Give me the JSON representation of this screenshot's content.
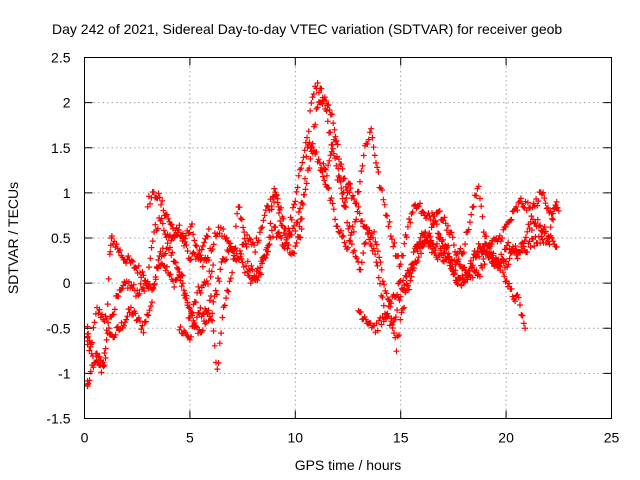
{
  "chart_data": {
    "type": "scatter",
    "title": "Day 242 of 2021, Sidereal Day-to-day VTEC variation (SDTVAR) for receiver geob",
    "xlabel": "GPS time / hours",
    "ylabel": "SDTVAR / TECUs",
    "xlim": [
      0,
      25
    ],
    "ylim": [
      -1.5,
      2.5
    ],
    "x_ticks": [
      "0",
      "5",
      "10",
      "15",
      "20",
      "25"
    ],
    "y_ticks": [
      "-1.5",
      "-1",
      "-0.5",
      "0",
      "0.5",
      "1",
      "1.5",
      "2",
      "2.5"
    ],
    "grid": true,
    "marker": "+",
    "series": [
      {
        "name": "SDTVAR",
        "color": "#ff0000",
        "tracks": [
          [
            [
              0.0,
              -0.5
            ],
            [
              0.3,
              -0.7
            ],
            [
              0.6,
              -0.3
            ],
            [
              1.0,
              -0.4
            ],
            [
              1.3,
              -0.6
            ],
            [
              1.7,
              -0.5
            ],
            [
              2.2,
              -0.3
            ],
            [
              2.8,
              -0.5
            ],
            [
              3.2,
              -0.2
            ],
            [
              3.5,
              0.3
            ],
            [
              3.8,
              0.2
            ],
            [
              4.2,
              0.0
            ],
            [
              4.6,
              0.1
            ],
            [
              5.0,
              -0.4
            ],
            [
              5.4,
              -0.1
            ],
            [
              5.8,
              0.0
            ],
            [
              6.1,
              0.2
            ]
          ],
          [
            [
              0.0,
              -0.6
            ],
            [
              0.4,
              -0.8
            ],
            [
              0.8,
              -1.0
            ],
            [
              1.0,
              -0.8
            ],
            [
              1.2,
              0.3
            ],
            [
              1.3,
              0.5
            ],
            [
              1.8,
              0.3
            ],
            [
              2.3,
              0.2
            ],
            [
              2.8,
              0.1
            ],
            [
              3.2,
              -0.1
            ],
            [
              3.6,
              0.3
            ],
            [
              4.0,
              0.4
            ],
            [
              4.5,
              0.1
            ],
            [
              5.0,
              -0.3
            ],
            [
              5.5,
              -0.6
            ],
            [
              6.0,
              -0.2
            ],
            [
              6.3,
              -1.0
            ],
            [
              6.6,
              -0.3
            ],
            [
              7.0,
              0.1
            ],
            [
              7.3,
              0.9
            ],
            [
              7.8,
              0.2
            ],
            [
              8.2,
              0.0
            ],
            [
              8.7,
              0.4
            ],
            [
              9.0,
              1.1
            ],
            [
              9.4,
              0.6
            ],
            [
              9.8,
              0.3
            ],
            [
              10.0,
              0.4
            ],
            [
              10.3,
              0.6
            ]
          ],
          [
            [
              0.0,
              -1.2
            ],
            [
              0.3,
              -1.0
            ],
            [
              0.6,
              -0.8
            ],
            [
              0.9,
              -0.9
            ],
            [
              1.1,
              -0.5
            ],
            [
              1.5,
              -0.2
            ],
            [
              2.0,
              0.0
            ],
            [
              2.5,
              -0.1
            ],
            [
              3.0,
              0.0
            ],
            [
              3.3,
              0.6
            ],
            [
              3.6,
              0.7
            ],
            [
              4.0,
              0.5
            ],
            [
              4.5,
              0.6
            ],
            [
              5.0,
              0.3
            ],
            [
              5.4,
              0.3
            ],
            [
              5.9,
              0.6
            ]
          ],
          [
            [
              3.0,
              0.9
            ],
            [
              3.4,
              1.0
            ],
            [
              3.8,
              0.8
            ],
            [
              4.2,
              0.6
            ],
            [
              4.7,
              0.5
            ],
            [
              5.1,
              0.6
            ],
            [
              5.5,
              0.2
            ],
            [
              5.9,
              0.3
            ],
            [
              6.3,
              0.6
            ],
            [
              6.8,
              0.5
            ],
            [
              7.2,
              0.2
            ],
            [
              7.6,
              0.5
            ],
            [
              8.1,
              0.4
            ],
            [
              8.6,
              0.8
            ],
            [
              9.1,
              1.0
            ],
            [
              9.6,
              0.5
            ],
            [
              10.0,
              0.6
            ],
            [
              10.4,
              1.0
            ],
            [
              10.7,
              1.9
            ],
            [
              11.0,
              2.2
            ],
            [
              11.3,
              2.1
            ],
            [
              11.6,
              1.7
            ],
            [
              12.0,
              1.2
            ],
            [
              12.3,
              0.9
            ],
            [
              12.6,
              1.1
            ]
          ],
          [
            [
              4.5,
              -0.5
            ],
            [
              5.0,
              -0.6
            ],
            [
              5.5,
              -0.3
            ],
            [
              6.0,
              -0.4
            ],
            [
              6.5,
              0.2
            ],
            [
              7.0,
              0.4
            ],
            [
              7.5,
              0.2
            ],
            [
              8.0,
              0.0
            ],
            [
              8.5,
              0.3
            ],
            [
              9.0,
              0.6
            ],
            [
              9.5,
              0.4
            ],
            [
              10.0,
              0.9
            ],
            [
              10.5,
              1.6
            ],
            [
              11.0,
              1.4
            ],
            [
              11.5,
              1.2
            ],
            [
              11.9,
              1.6
            ],
            [
              12.4,
              1.1
            ],
            [
              12.9,
              0.9
            ],
            [
              13.3,
              1.5
            ],
            [
              13.6,
              1.7
            ],
            [
              14.0,
              1.1
            ],
            [
              14.3,
              0.8
            ],
            [
              14.7,
              0.4
            ],
            [
              15.0,
              0.2
            ],
            [
              15.4,
              0.7
            ],
            [
              15.8,
              0.9
            ],
            [
              16.2,
              0.7
            ],
            [
              16.6,
              0.8
            ],
            [
              17.0,
              0.3
            ],
            [
              17.5,
              0.2
            ],
            [
              18.0,
              0.4
            ],
            [
              18.4,
              0.8
            ],
            [
              18.7,
              1.1
            ],
            [
              19.0,
              0.5
            ],
            [
              19.4,
              0.3
            ],
            [
              19.8,
              0.2
            ],
            [
              20.2,
              -0.1
            ],
            [
              20.6,
              -0.2
            ],
            [
              20.9,
              -0.5
            ]
          ],
          [
            [
              10.2,
              0.6
            ],
            [
              10.6,
              1.2
            ],
            [
              11.0,
              1.9
            ],
            [
              11.4,
              2.1
            ],
            [
              11.8,
              1.8
            ],
            [
              12.1,
              1.2
            ],
            [
              12.4,
              0.8
            ],
            [
              12.8,
              0.3
            ],
            [
              13.1,
              0.1
            ],
            [
              13.4,
              0.6
            ],
            [
              13.8,
              0.5
            ],
            [
              14.1,
              0.1
            ],
            [
              14.5,
              -0.3
            ],
            [
              14.8,
              -0.7
            ],
            [
              15.1,
              -0.3
            ],
            [
              15.4,
              0.1
            ],
            [
              15.8,
              0.3
            ],
            [
              16.3,
              0.5
            ],
            [
              16.8,
              0.8
            ],
            [
              17.3,
              0.6
            ],
            [
              17.8,
              0.2
            ],
            [
              18.2,
              0.1
            ],
            [
              18.7,
              0.4
            ],
            [
              19.1,
              0.3
            ],
            [
              19.6,
              0.2
            ],
            [
              20.1,
              0.4
            ],
            [
              20.6,
              0.3
            ],
            [
              21.0,
              0.6
            ],
            [
              21.5,
              0.7
            ],
            [
              22.0,
              0.5
            ],
            [
              22.4,
              0.9
            ]
          ],
          [
            [
              11.2,
              1.3
            ],
            [
              11.6,
              1.0
            ],
            [
              12.0,
              0.6
            ],
            [
              12.5,
              0.4
            ],
            [
              13.0,
              0.8
            ],
            [
              13.5,
              0.5
            ],
            [
              13.9,
              0.2
            ],
            [
              14.2,
              -0.3
            ],
            [
              14.6,
              -0.5
            ],
            [
              15.0,
              -0.1
            ],
            [
              15.5,
              0.2
            ],
            [
              16.0,
              0.6
            ],
            [
              16.5,
              0.4
            ],
            [
              17.0,
              0.5
            ],
            [
              17.5,
              0.1
            ],
            [
              18.0,
              0.0
            ],
            [
              18.5,
              0.3
            ],
            [
              19.0,
              0.4
            ],
            [
              19.5,
              0.2
            ],
            [
              20.0,
              0.2
            ],
            [
              20.5,
              0.4
            ],
            [
              21.0,
              0.4
            ],
            [
              21.5,
              0.5
            ],
            [
              22.0,
              0.5
            ],
            [
              22.4,
              0.4
            ]
          ],
          [
            [
              13.0,
              -0.3
            ],
            [
              13.4,
              -0.4
            ],
            [
              13.8,
              -0.5
            ],
            [
              14.2,
              -0.4
            ],
            [
              14.6,
              -0.2
            ],
            [
              15.0,
              0.0
            ],
            [
              15.4,
              -0.1
            ],
            [
              15.8,
              0.4
            ],
            [
              16.2,
              0.5
            ],
            [
              16.7,
              0.3
            ],
            [
              17.2,
              0.4
            ],
            [
              17.7,
              0.0
            ],
            [
              18.2,
              0.1
            ],
            [
              18.7,
              0.1
            ],
            [
              19.2,
              0.4
            ],
            [
              19.7,
              0.5
            ],
            [
              20.2,
              0.7
            ],
            [
              20.7,
              0.9
            ],
            [
              21.2,
              0.8
            ],
            [
              21.7,
              1.0
            ],
            [
              22.1,
              0.8
            ],
            [
              22.5,
              0.8
            ]
          ]
        ]
      }
    ]
  }
}
